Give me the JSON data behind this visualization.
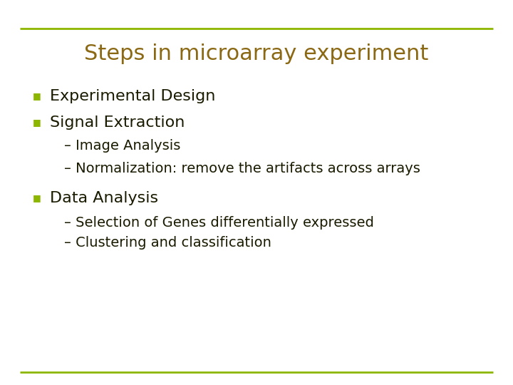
{
  "title": "Steps in microarray experiment",
  "title_color": "#8B6914",
  "title_fontsize": 22,
  "background_color": "#FFFFFF",
  "line_color": "#8DB600",
  "line_width": 2.0,
  "bullet_color": "#8DB600",
  "bullet_char": "■",
  "text_color": "#1a1a00",
  "main_fontsize": 16,
  "sub_fontsize": 14,
  "items": [
    {
      "level": 1,
      "text": "Experimental Design"
    },
    {
      "level": 1,
      "text": "Signal Extraction"
    },
    {
      "level": 2,
      "text": "– Image Analysis"
    },
    {
      "level": 2,
      "text": "– Normalization: remove the artifacts across arrays"
    },
    {
      "level": 1,
      "text": "Data Analysis"
    },
    {
      "level": 2,
      "text": "– Selection of Genes differentially expressed"
    },
    {
      "level": 2,
      "text": "– Clustering and classification"
    }
  ]
}
